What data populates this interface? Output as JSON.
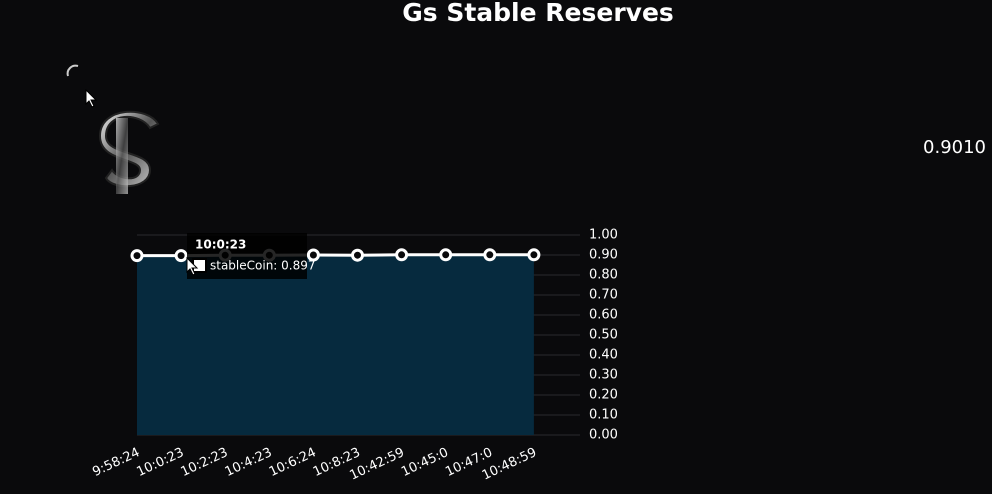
{
  "title": "Gs Stable Reserves",
  "current_value": "0.9010",
  "chart_data": {
    "type": "area",
    "categories": [
      "9:58:24",
      "10:0:23",
      "10:2:23",
      "10:4:23",
      "10:6:24",
      "10:8:23",
      "10:42:59",
      "10:45:0",
      "10:47:0",
      "10:48:59"
    ],
    "series": [
      {
        "name": "stableCoin",
        "color": "#ffffff",
        "fill": "#062a3e",
        "values": [
          0.897,
          0.897,
          0.899,
          0.899,
          0.9,
          0.899,
          0.901,
          0.901,
          0.901,
          0.901
        ]
      }
    ],
    "ylim": [
      0,
      1
    ],
    "yticks": [
      {
        "value": 0,
        "label": "0.00"
      },
      {
        "value": 0.1,
        "label": "0.10"
      },
      {
        "value": 0.2,
        "label": "0.20"
      },
      {
        "value": 0.3,
        "label": "0.30"
      },
      {
        "value": 0.4,
        "label": "0.40"
      },
      {
        "value": 0.5,
        "label": "0.50"
      },
      {
        "value": 0.6,
        "label": "0.60"
      },
      {
        "value": 0.7,
        "label": "0.70"
      },
      {
        "value": 0.8,
        "label": "0.80"
      },
      {
        "value": 0.9,
        "label": "0.90"
      },
      {
        "value": 1,
        "label": "1.00"
      }
    ],
    "grid": true,
    "tooltip": {
      "title": "10:0:23",
      "label": "stableCoin: 0.897"
    }
  }
}
